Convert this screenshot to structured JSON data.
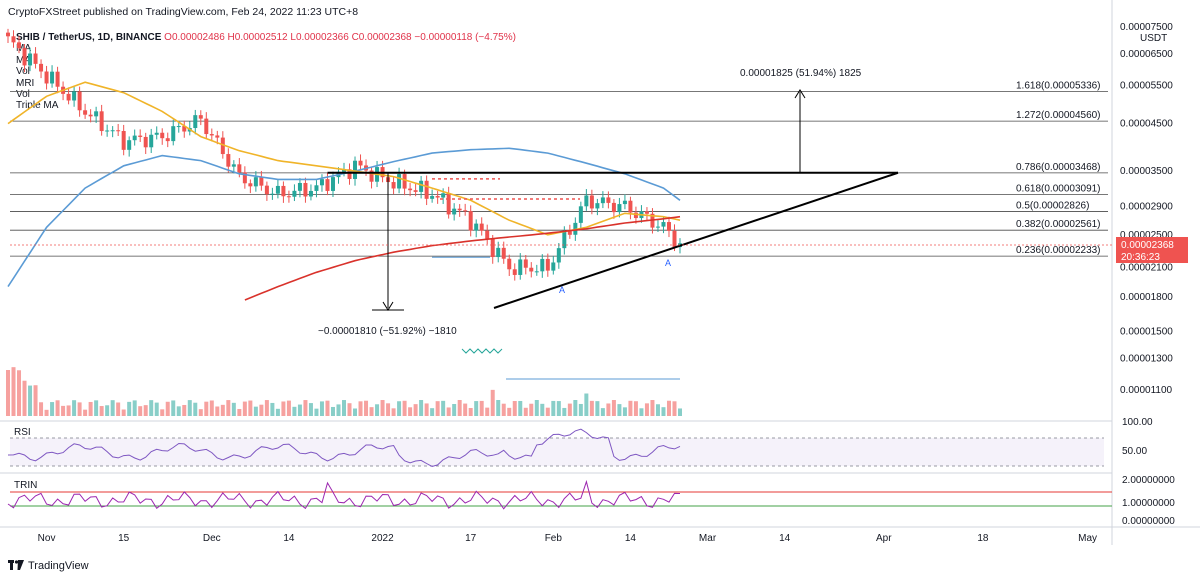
{
  "header": {
    "publisher_line": "CryptoFXStreet published on TradingView.com, Feb 24, 2022 11:23 UTC+8"
  },
  "legend": {
    "symbol": "SHIB / TetherUS, 1D, BINANCE",
    "ohlc": "O0.00002486  H0.00002512  L0.00002366  C0.00002368  −0.00000118 (−4.75%)",
    "indicators": [
      "MA",
      "MA",
      "Vol",
      "MRI",
      "Vol",
      "Triple MA"
    ]
  },
  "price_axis": {
    "unit": "USDT",
    "labels": [
      "0.00007500",
      "0.00006500",
      "0.00005500",
      "0.00004500",
      "0.00003500",
      "0.00002900",
      "0.00002500",
      "0.00002100",
      "0.00001800",
      "0.00001500",
      "0.00001300",
      "0.00001100"
    ],
    "current_price": "0.00002368",
    "countdown": "20:36:23"
  },
  "time_axis": {
    "labels": [
      "Nov",
      "15",
      "Dec",
      "14",
      "2022",
      "17",
      "Feb",
      "14",
      "Mar",
      "14",
      "Apr",
      "18",
      "May"
    ]
  },
  "rsi_panel": {
    "label": "RSI",
    "axis_labels": [
      "100.00",
      "50.00"
    ]
  },
  "trin_panel": {
    "label": "TRIN",
    "axis_labels": [
      "2.00000000",
      "1.00000000",
      "0.00000000"
    ]
  },
  "fib_levels": [
    {
      "label": "1.618(0.00005336)",
      "price": 5.336e-05
    },
    {
      "label": "1.272(0.00004560)",
      "price": 4.56e-05
    },
    {
      "label": "0.786(0.00003468)",
      "price": 3.468e-05
    },
    {
      "label": "0.618(0.00003091)",
      "price": 3.091e-05
    },
    {
      "label": "0.5(0.00002826)",
      "price": 2.826e-05
    },
    {
      "label": "0.382(0.00002561)",
      "price": 2.561e-05
    },
    {
      "label": "0.236(0.00002233)",
      "price": 2.233e-05
    }
  ],
  "annotations": {
    "target_measure": "0.00001825 (51.94%) 1825",
    "drop_measure": "−0.00001810 (−51.92%) −1810",
    "marker_a": "A"
  },
  "footer": {
    "brand": "TradingView"
  },
  "colors": {
    "up": "#26a69a",
    "down": "#ef5350",
    "ma_blue": "#5b9bd5",
    "ma_orange": "#f0b429",
    "ma_red": "#d9322b",
    "rsi_line": "#7e57c2",
    "trin_line": "#9c27b0",
    "trin_upper": "#e53935",
    "trin_lower": "#43a047"
  },
  "chart_data": {
    "type": "candlestick",
    "symbol": "SHIB/USDT",
    "timeframe": "1D",
    "y_scale": "log",
    "ylim": [
      1e-05,
      7.5e-05
    ],
    "x": [
      "Oct 25",
      "Nov 1",
      "Nov 8",
      "Nov 15",
      "Nov 22",
      "Nov 29",
      "Dec 6",
      "Dec 13",
      "Dec 20",
      "Dec 27",
      "Jan 3",
      "Jan 10",
      "Jan 17",
      "Jan 24",
      "Jan 31",
      "Feb 7",
      "Feb 14",
      "Feb 21",
      "Feb 24"
    ],
    "close": [
      7e-05,
      5.8e-05,
      4.8e-05,
      4.1e-05,
      4.2e-05,
      4.6e-05,
      3.4e-05,
      3.1e-05,
      3.2e-05,
      3.6e-05,
      3.3e-05,
      3.1e-05,
      2.7e-05,
      2.1e-05,
      2.1e-05,
      3e-05,
      2.9e-05,
      2.6e-05,
      2.368e-05
    ],
    "series": [
      {
        "name": "MA blue",
        "values": [
          1.9e-05,
          2.6e-05,
          3.2e-05,
          3.6e-05,
          3.8e-05,
          3.7e-05,
          3.45e-05,
          3.35e-05,
          3.35e-05,
          3.5e-05,
          3.68e-05,
          3.85e-05,
          3.92e-05,
          3.95e-05,
          3.85e-05,
          3.65e-05,
          3.45e-05,
          3.2e-05,
          3e-05
        ]
      },
      {
        "name": "MA orange",
        "values": [
          4.5e-05,
          5.2e-05,
          5.6e-05,
          5.3e-05,
          4.8e-05,
          4.2e-05,
          3.9e-05,
          3.7e-05,
          3.6e-05,
          3.5e-05,
          3.4e-05,
          3.2e-05,
          3e-05,
          2.7e-05,
          2.5e-05,
          2.6e-05,
          2.8e-05,
          2.75e-05,
          2.7e-05
        ]
      },
      {
        "name": "MA red",
        "values": [
          null,
          null,
          null,
          null,
          null,
          null,
          1.75e-05,
          1.9e-05,
          2.05e-05,
          2.18e-05,
          2.28e-05,
          2.36e-05,
          2.42e-05,
          2.47e-05,
          2.52e-05,
          2.58e-05,
          2.66e-05,
          2.72e-05,
          2.75e-05
        ]
      }
    ]
  }
}
